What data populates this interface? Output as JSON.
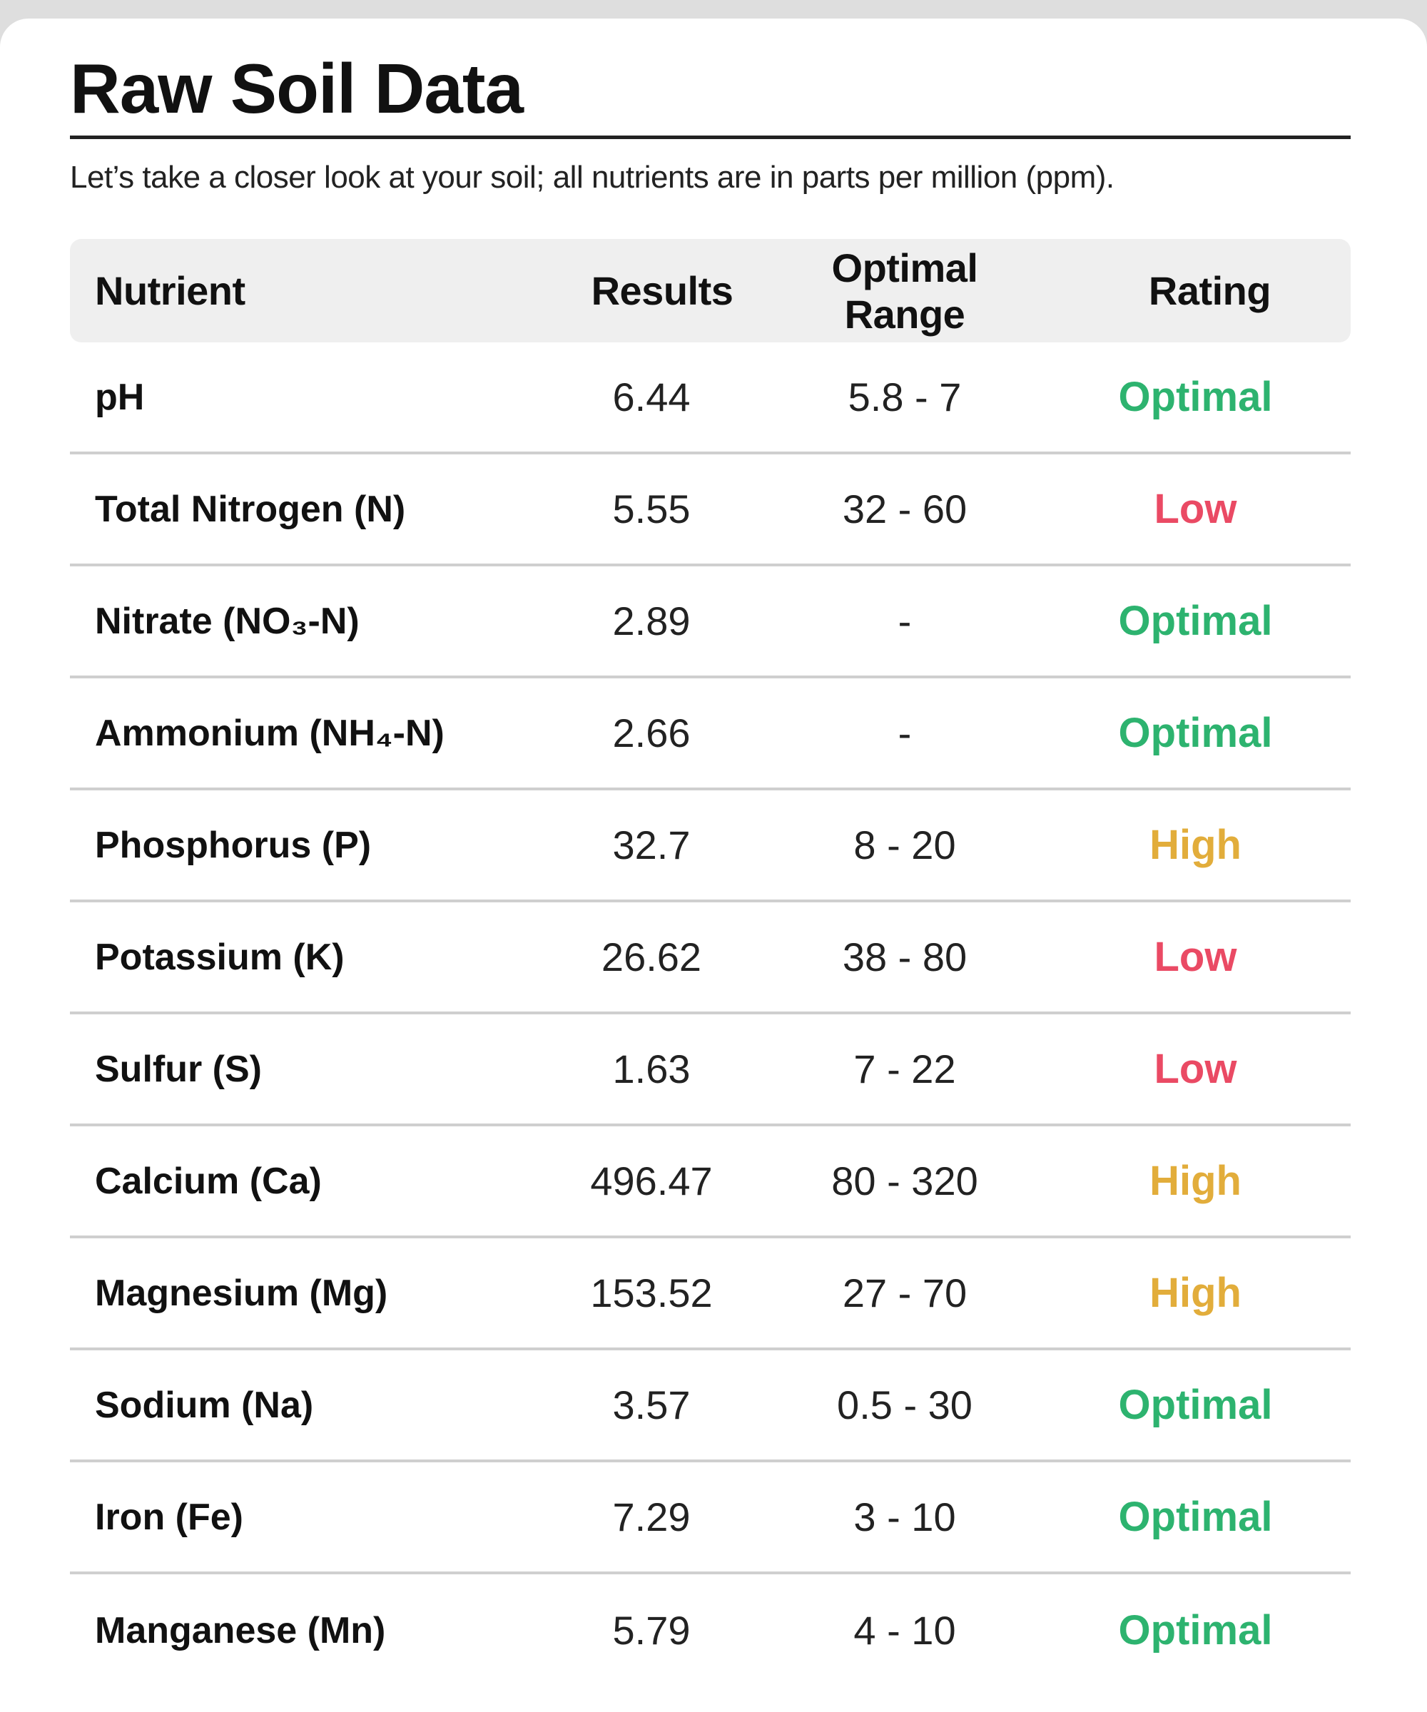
{
  "page": {
    "title": "Raw Soil Data",
    "subtitle": "Let’s take a closer look at your soil; all nutrients are in parts per million (ppm)."
  },
  "table": {
    "headers": {
      "nutrient": "Nutrient",
      "results": "Results",
      "optimal_range": "Optimal Range",
      "rating": "Rating"
    },
    "rows": [
      {
        "nutrient": "pH",
        "result": "6.44",
        "range": "5.8 - 7",
        "rating": "Optimal",
        "status": "optimal"
      },
      {
        "nutrient": "Total Nitrogen (N)",
        "result": "5.55",
        "range": "32 - 60",
        "rating": "Low",
        "status": "low"
      },
      {
        "nutrient": "Nitrate (NO₃-N)",
        "result": "2.89",
        "range": "-",
        "rating": "Optimal",
        "status": "optimal"
      },
      {
        "nutrient": "Ammonium (NH₄-N)",
        "result": "2.66",
        "range": "-",
        "rating": "Optimal",
        "status": "optimal"
      },
      {
        "nutrient": "Phosphorus (P)",
        "result": "32.7",
        "range": "8 - 20",
        "rating": "High",
        "status": "high"
      },
      {
        "nutrient": "Potassium (K)",
        "result": "26.62",
        "range": "38 - 80",
        "rating": "Low",
        "status": "low"
      },
      {
        "nutrient": "Sulfur (S)",
        "result": "1.63",
        "range": "7 - 22",
        "rating": "Low",
        "status": "low"
      },
      {
        "nutrient": "Calcium (Ca)",
        "result": "496.47",
        "range": "80 - 320",
        "rating": "High",
        "status": "high"
      },
      {
        "nutrient": "Magnesium (Mg)",
        "result": "153.52",
        "range": "27 - 70",
        "rating": "High",
        "status": "high"
      },
      {
        "nutrient": "Sodium (Na)",
        "result": "3.57",
        "range": "0.5 - 30",
        "rating": "Optimal",
        "status": "optimal"
      },
      {
        "nutrient": "Iron (Fe)",
        "result": "7.29",
        "range": "3 - 10",
        "rating": "Optimal",
        "status": "optimal"
      },
      {
        "nutrient": "Manganese (Mn)",
        "result": "5.79",
        "range": "4 - 10",
        "rating": "Optimal",
        "status": "optimal"
      }
    ]
  },
  "colors": {
    "optimal": "#2db36f",
    "low": "#ea4a64",
    "high": "#e2ad3b",
    "header_bg": "#efefef",
    "divider": "#cfcfcf"
  }
}
